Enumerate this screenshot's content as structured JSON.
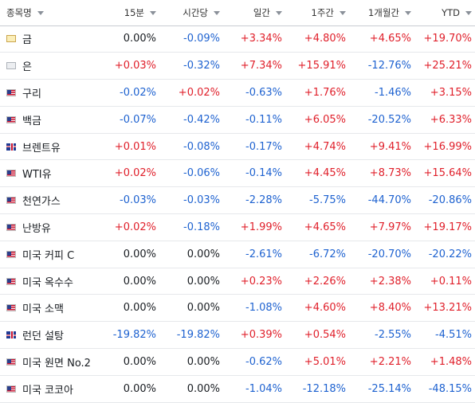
{
  "headers": {
    "name": "종목명",
    "m15": "15분",
    "hourly": "시간당",
    "daily": "일간",
    "weekly": "1주간",
    "monthly": "1개월간",
    "ytd": "YTD"
  },
  "colors": {
    "positive": "#e0202b",
    "negative": "#1e62d0",
    "neutral": "#181c21"
  },
  "rows": [
    {
      "name": "금",
      "flag": "gold-icon",
      "m15": "0.00%",
      "hourly": "-0.09%",
      "daily": "+3.34%",
      "weekly": "+4.80%",
      "monthly": "+4.65%",
      "ytd": "+19.70%"
    },
    {
      "name": "은",
      "flag": "silver-icon",
      "m15": "+0.03%",
      "hourly": "-0.32%",
      "daily": "+7.34%",
      "weekly": "+15.91%",
      "monthly": "-12.76%",
      "ytd": "+25.21%"
    },
    {
      "name": "구리",
      "flag": "us-flag-icon",
      "m15": "-0.02%",
      "hourly": "+0.02%",
      "daily": "-0.63%",
      "weekly": "+1.76%",
      "monthly": "-1.46%",
      "ytd": "+3.15%"
    },
    {
      "name": "백금",
      "flag": "us-flag-icon",
      "m15": "-0.07%",
      "hourly": "-0.42%",
      "daily": "-0.11%",
      "weekly": "+6.05%",
      "monthly": "-20.52%",
      "ytd": "+6.33%"
    },
    {
      "name": "브렌트유",
      "flag": "uk-flag-icon",
      "m15": "+0.01%",
      "hourly": "-0.08%",
      "daily": "-0.17%",
      "weekly": "+4.74%",
      "monthly": "+9.41%",
      "ytd": "+16.99%"
    },
    {
      "name": "WTI유",
      "flag": "us-flag-icon",
      "m15": "+0.02%",
      "hourly": "-0.06%",
      "daily": "-0.14%",
      "weekly": "+4.45%",
      "monthly": "+8.73%",
      "ytd": "+15.64%"
    },
    {
      "name": "천연가스",
      "flag": "us-flag-icon",
      "m15": "-0.03%",
      "hourly": "-0.03%",
      "daily": "-2.28%",
      "weekly": "-5.75%",
      "monthly": "-44.70%",
      "ytd": "-20.86%"
    },
    {
      "name": "난방유",
      "flag": "us-flag-icon",
      "m15": "+0.02%",
      "hourly": "-0.18%",
      "daily": "+1.99%",
      "weekly": "+4.65%",
      "monthly": "+7.97%",
      "ytd": "+19.17%"
    },
    {
      "name": "미국 커피 C",
      "flag": "us-flag-icon",
      "m15": "0.00%",
      "hourly": "0.00%",
      "daily": "-2.61%",
      "weekly": "-6.72%",
      "monthly": "-20.70%",
      "ytd": "-20.22%"
    },
    {
      "name": "미국 옥수수",
      "flag": "us-flag-icon",
      "m15": "0.00%",
      "hourly": "0.00%",
      "daily": "+0.23%",
      "weekly": "+2.26%",
      "monthly": "+2.38%",
      "ytd": "+0.11%"
    },
    {
      "name": "미국 소맥",
      "flag": "us-flag-icon",
      "m15": "0.00%",
      "hourly": "0.00%",
      "daily": "-1.08%",
      "weekly": "+4.60%",
      "monthly": "+8.40%",
      "ytd": "+13.21%"
    },
    {
      "name": "런던 설탕",
      "flag": "uk-flag-icon",
      "m15": "-19.82%",
      "hourly": "-19.82%",
      "daily": "+0.39%",
      "weekly": "+0.54%",
      "monthly": "-2.55%",
      "ytd": "-4.51%"
    },
    {
      "name": "미국 원면 No.2",
      "flag": "us-flag-icon",
      "m15": "0.00%",
      "hourly": "0.00%",
      "daily": "-0.62%",
      "weekly": "+5.01%",
      "monthly": "+2.21%",
      "ytd": "+1.48%"
    },
    {
      "name": "미국 코코아",
      "flag": "us-flag-icon",
      "m15": "0.00%",
      "hourly": "0.00%",
      "daily": "-1.04%",
      "weekly": "-12.18%",
      "monthly": "-25.14%",
      "ytd": "-48.15%"
    }
  ]
}
